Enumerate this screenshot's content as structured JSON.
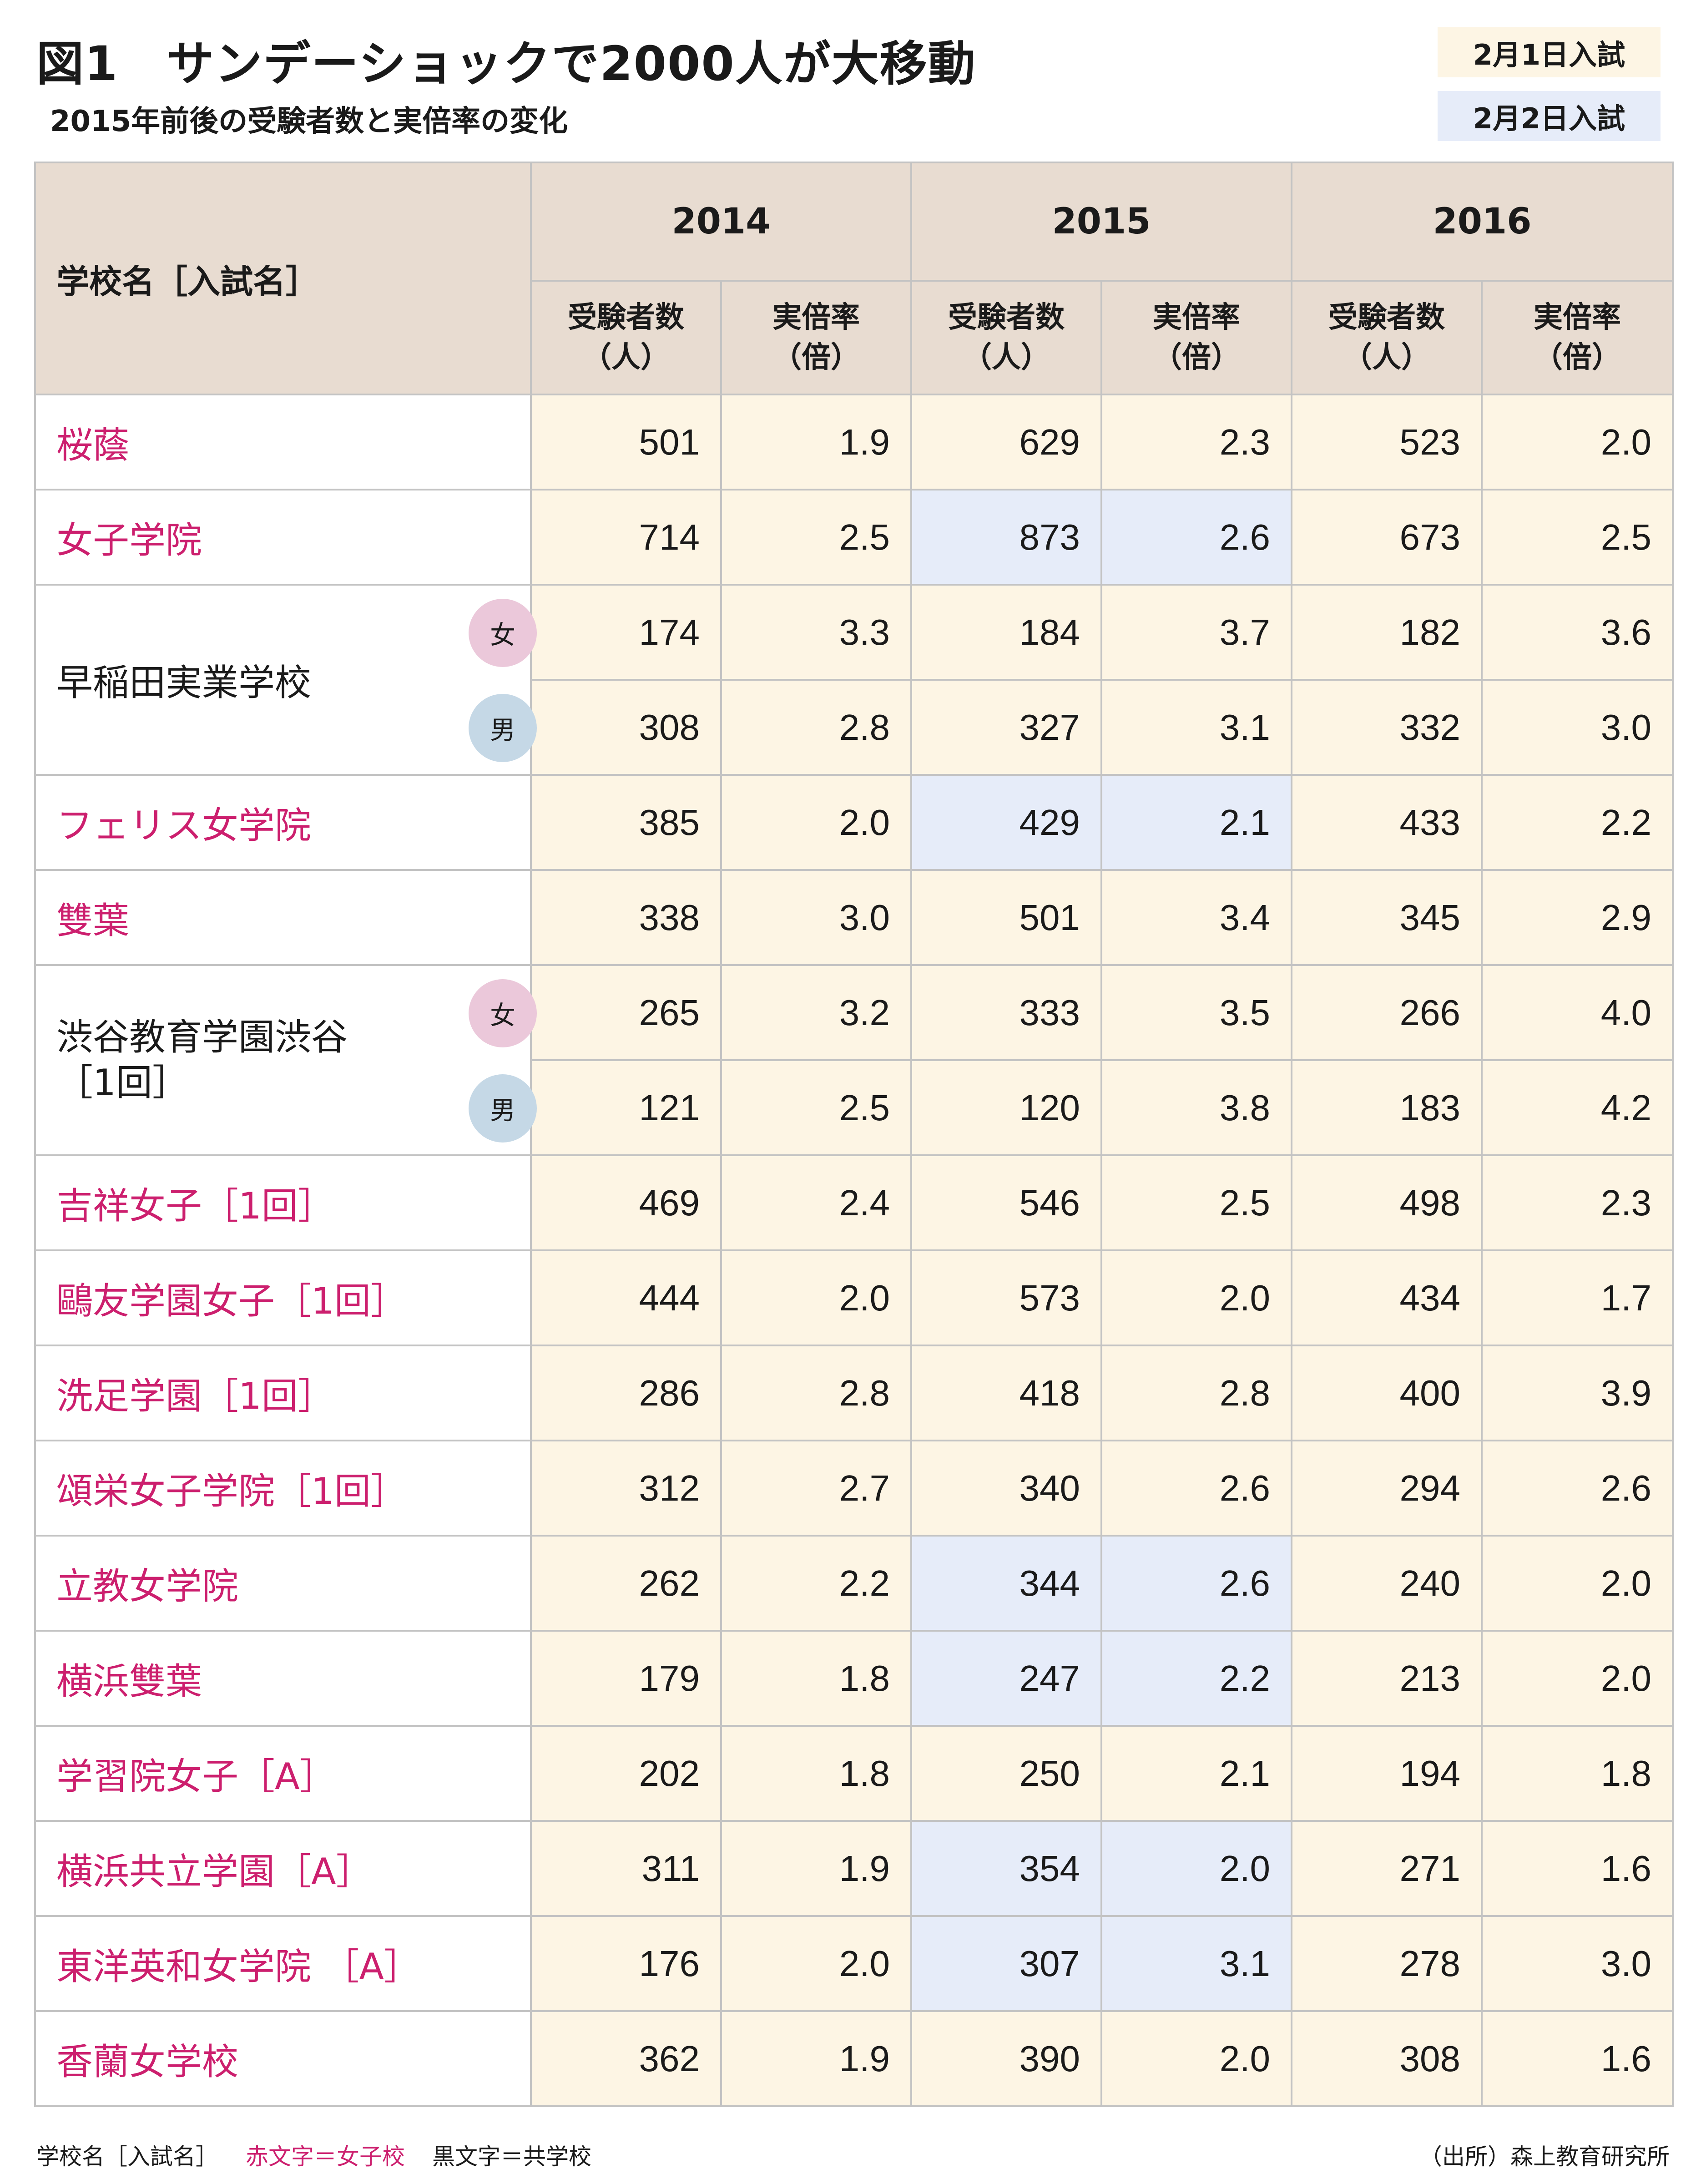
{
  "title": "図1　サンデーショックで2000人が大移動",
  "subtitle": "2015年前後の受験者数と実倍率の変化",
  "legend": {
    "feb1": "2月1日入試",
    "feb2": "2月2日入試"
  },
  "header": {
    "school": "学校名［入試名］",
    "years": [
      "2014",
      "2015",
      "2016"
    ],
    "applicants": "受験者数（人）",
    "ratio": "実倍率（倍）"
  },
  "gender": {
    "f": "女",
    "m": "男"
  },
  "rows": [
    {
      "school": "桜蔭",
      "type": "girls",
      "v": [
        "501",
        "1.9",
        "629",
        "2.3",
        "523",
        "2.0"
      ],
      "b2015": "feb1"
    },
    {
      "school": "女子学院",
      "type": "girls",
      "v": [
        "714",
        "2.5",
        "873",
        "2.6",
        "673",
        "2.5"
      ],
      "b2015": "feb2"
    },
    {
      "school": "早稲田実業学校",
      "type": "coed",
      "v": [
        "174",
        "3.3",
        "184",
        "3.7",
        "182",
        "3.6"
      ],
      "b2015": "feb1"
    },
    {
      "school": "",
      "type": "coed",
      "v": [
        "308",
        "2.8",
        "327",
        "3.1",
        "332",
        "3.0"
      ],
      "b2015": "feb1"
    },
    {
      "school": "フェリス女学院",
      "type": "girls",
      "v": [
        "385",
        "2.0",
        "429",
        "2.1",
        "433",
        "2.2"
      ],
      "b2015": "feb2"
    },
    {
      "school": "雙葉",
      "type": "girls",
      "v": [
        "338",
        "3.0",
        "501",
        "3.4",
        "345",
        "2.9"
      ],
      "b2015": "feb1"
    },
    {
      "school": "渋谷教育学園渋谷",
      "school2": "［1回］",
      "type": "coed",
      "v": [
        "265",
        "3.2",
        "333",
        "3.5",
        "266",
        "4.0"
      ],
      "b2015": "feb1"
    },
    {
      "school": "",
      "type": "coed",
      "v": [
        "121",
        "2.5",
        "120",
        "3.8",
        "183",
        "4.2"
      ],
      "b2015": "feb1"
    },
    {
      "school": "吉祥女子［1回］",
      "type": "girls",
      "v": [
        "469",
        "2.4",
        "546",
        "2.5",
        "498",
        "2.3"
      ],
      "b2015": "feb1"
    },
    {
      "school": "鷗友学園女子［1回］",
      "type": "girls",
      "v": [
        "444",
        "2.0",
        "573",
        "2.0",
        "434",
        "1.7"
      ],
      "b2015": "feb1"
    },
    {
      "school": "洗足学園［1回］",
      "type": "girls",
      "v": [
        "286",
        "2.8",
        "418",
        "2.8",
        "400",
        "3.9"
      ],
      "b2015": "feb1"
    },
    {
      "school": "頌栄女子学院［1回］",
      "type": "girls",
      "v": [
        "312",
        "2.7",
        "340",
        "2.6",
        "294",
        "2.6"
      ],
      "b2015": "feb1"
    },
    {
      "school": "立教女学院",
      "type": "girls",
      "v": [
        "262",
        "2.2",
        "344",
        "2.6",
        "240",
        "2.0"
      ],
      "b2015": "feb2"
    },
    {
      "school": "横浜雙葉",
      "type": "girls",
      "v": [
        "179",
        "1.8",
        "247",
        "2.2",
        "213",
        "2.0"
      ],
      "b2015": "feb2"
    },
    {
      "school": "学習院女子［A］",
      "type": "girls",
      "v": [
        "202",
        "1.8",
        "250",
        "2.1",
        "194",
        "1.8"
      ],
      "b2015": "feb1"
    },
    {
      "school": "横浜共立学園［A］",
      "type": "girls",
      "v": [
        "311",
        "1.9",
        "354",
        "2.0",
        "271",
        "1.6"
      ],
      "b2015": "feb2"
    },
    {
      "school": "東洋英和女学院 ［A］",
      "type": "girls",
      "v": [
        "176",
        "2.0",
        "307",
        "3.1",
        "278",
        "3.0"
      ],
      "b2015": "feb2"
    },
    {
      "school": "香蘭女学校",
      "type": "girls",
      "v": [
        "362",
        "1.9",
        "390",
        "2.0",
        "308",
        "1.6"
      ],
      "b2015": "feb1"
    }
  ],
  "footer": {
    "key": "学校名［入試名］",
    "red_note": "赤文字＝女子校",
    "black_note": "黒文字＝共学校",
    "source": "（出所）森上教育研究所"
  },
  "colors": {
    "girls_text": "#cc1f6e",
    "feb1_bg": "#fdf5e4",
    "feb2_bg": "#e6ecf9",
    "header_bg": "#e8dcd1"
  }
}
